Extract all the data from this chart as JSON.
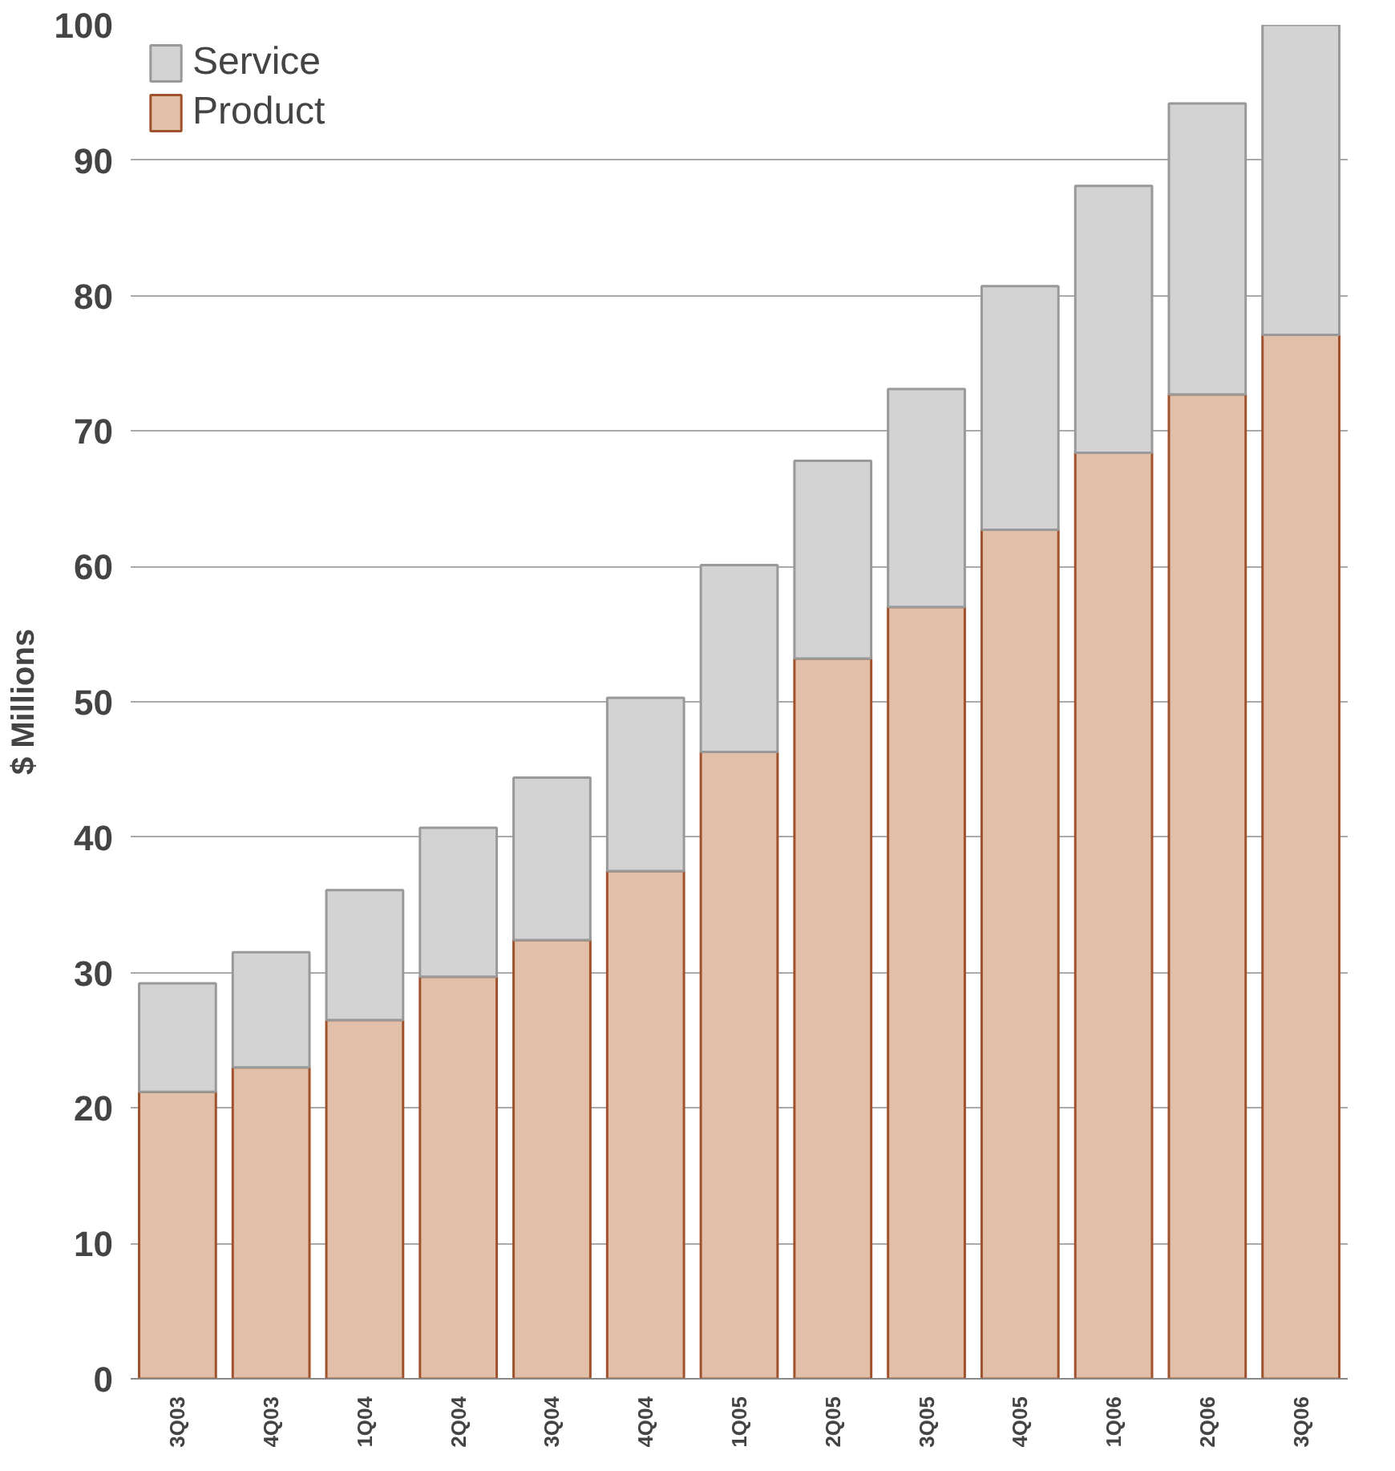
{
  "chart_data": {
    "type": "bar",
    "stacked": true,
    "ylabel": "$ Millions",
    "categories": [
      "3Q03",
      "4Q03",
      "1Q04",
      "2Q04",
      "3Q04",
      "4Q04",
      "1Q05",
      "2Q05",
      "3Q05",
      "4Q05",
      "1Q06",
      "2Q06",
      "3Q06"
    ],
    "series": [
      {
        "name": "Product",
        "color": "#e2bfa9",
        "values": [
          21.2,
          23.0,
          26.5,
          29.7,
          32.4,
          37.5,
          46.3,
          53.2,
          57.0,
          62.7,
          68.4,
          72.7,
          77.1
        ]
      },
      {
        "name": "Service",
        "color": "#d3d3d3",
        "values": [
          8.0,
          8.5,
          9.6,
          11.0,
          12.0,
          12.8,
          13.8,
          14.6,
          16.1,
          18.0,
          19.7,
          21.5,
          22.9
        ]
      }
    ],
    "ylim": [
      0,
      100
    ],
    "yticks": [
      0,
      10,
      20,
      30,
      40,
      50,
      60,
      70,
      80,
      90,
      100
    ],
    "grid": "y",
    "legend": "top left"
  }
}
